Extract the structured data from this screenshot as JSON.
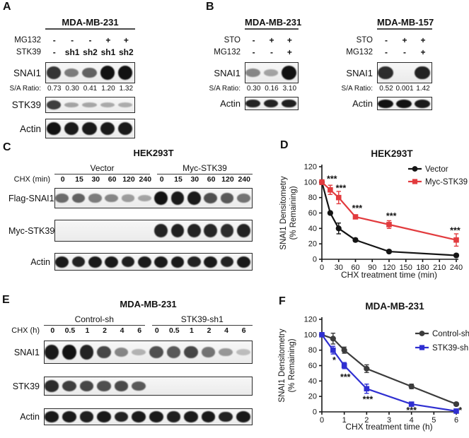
{
  "panels": {
    "A": {
      "letter": "A",
      "western": {
        "cell_line": "MDA-MB-231",
        "treatments": [
          {
            "label": "MG132",
            "values": [
              "-",
              "-",
              "-",
              "+",
              "+"
            ]
          },
          {
            "label": "STK39",
            "values": [
              "-",
              "sh1",
              "sh2",
              "sh1",
              "sh2"
            ]
          }
        ],
        "ratio_label": "S/A Ratio:",
        "ratios": [
          "0.73",
          "0.30",
          "0.41",
          "1.20",
          "1.32"
        ],
        "blots": [
          {
            "label": "SNAI1",
            "bands": [
              0.8,
              0.4,
              0.55,
              1,
              1
            ]
          },
          {
            "label": "STK39",
            "bands": [
              0.75,
              0.18,
              0.16,
              0.14,
              0.13
            ]
          },
          {
            "label": "Actin",
            "bands": [
              1,
              0.95,
              0.95,
              0.95,
              0.95
            ]
          }
        ]
      }
    },
    "B": {
      "letter": "B",
      "left": {
        "cell_line": "MDA-MB-231",
        "treatments": [
          {
            "label": "STO",
            "values": [
              "-",
              "+",
              "+"
            ]
          },
          {
            "label": "MG132",
            "values": [
              "-",
              "-",
              "+"
            ]
          }
        ],
        "ratio_label": "S/A Ratio:",
        "ratios": [
          "0.30",
          "0.16",
          "3.10"
        ],
        "blots": [
          {
            "label": "SNAI1",
            "bands": [
              0.35,
              0.18,
              1
            ]
          },
          {
            "label": "Actin",
            "bands": [
              0.9,
              0.9,
              0.92
            ]
          }
        ]
      },
      "right": {
        "cell_line": "MDA-MB-157",
        "treatments": [
          {
            "label": "STO",
            "values": [
              "-",
              "+",
              "+"
            ]
          },
          {
            "label": "MG132",
            "values": [
              "-",
              "-",
              "+"
            ]
          }
        ],
        "ratio_label": "S/A Ratio:",
        "ratios": [
          "0.52",
          "0.001",
          "1.42"
        ],
        "blots": [
          {
            "label": "SNAI1",
            "bands": [
              0.85,
              0,
              0.9
            ]
          },
          {
            "label": "Actin",
            "bands": [
              1,
              1,
              0.95
            ]
          }
        ]
      }
    },
    "C": {
      "letter": "C",
      "western": {
        "cell_line": "HEK293T",
        "groups": [
          "Vector",
          "Myc-STK39"
        ],
        "lane_label": "CHX (min)",
        "lane_values": [
          "0",
          "15",
          "30",
          "60",
          "120",
          "240",
          "0",
          "15",
          "30",
          "60",
          "120",
          "240"
        ],
        "blots": [
          {
            "label": "Flag-SNAI1",
            "bands": [
              0.5,
              0.55,
              0.4,
              0.35,
              0.22,
              0.18,
              1,
              0.95,
              0.95,
              0.65,
              0.6,
              0.45
            ]
          },
          {
            "label": "Myc-STK39",
            "bands": [
              0,
              0,
              0,
              0,
              0,
              0,
              0.9,
              0.92,
              0.9,
              0.88,
              0.85,
              0.9
            ]
          },
          {
            "label": "Actin",
            "bands": [
              0.95,
              0.9,
              0.95,
              0.95,
              0.92,
              0.95,
              0.95,
              0.95,
              0.9,
              0.95,
              0.9,
              0.95
            ]
          }
        ]
      }
    },
    "D": {
      "letter": "D"
    },
    "E": {
      "letter": "E",
      "western": {
        "cell_line": "MDA-MB-231",
        "groups": [
          "Control-sh",
          "STK39-sh1"
        ],
        "lane_label": "CHX (h)",
        "lane_values": [
          "0",
          "0.5",
          "1",
          "2",
          "4",
          "6",
          "0",
          "0.5",
          "1",
          "2",
          "4",
          "6"
        ],
        "blots": [
          {
            "label": "SNAI1",
            "bands": [
              0.95,
              1,
              0.9,
              0.7,
              0.35,
              0.1,
              0.65,
              0.6,
              0.7,
              0.45,
              0.25,
              0.04
            ]
          },
          {
            "label": "STK39",
            "bands": [
              0.85,
              0.75,
              0.7,
              0.65,
              0.68,
              0.6,
              0,
              0,
              0,
              0,
              0,
              0
            ]
          },
          {
            "label": "Actin",
            "bands": [
              0.95,
              0.95,
              0.92,
              0.95,
              0.9,
              0.95,
              0.95,
              0.92,
              0.95,
              0.95,
              0.9,
              0.95
            ]
          }
        ]
      }
    },
    "F": {
      "letter": "F"
    }
  },
  "chart_data": [
    {
      "panel": "D",
      "type": "line",
      "title": "HEK293T",
      "xlabel": "CHX treatment time (min)",
      "ylabel_line1": "SNAI1 Densitometry",
      "ylabel_line2": "(% Remaining)",
      "xlim": [
        0,
        240
      ],
      "ylim": [
        0,
        120
      ],
      "xticks": [
        0,
        30,
        60,
        90,
        120,
        150,
        180,
        210,
        240
      ],
      "yticks": [
        0,
        20,
        40,
        60,
        80,
        100,
        120
      ],
      "grid": false,
      "legend_position": "top-right",
      "series": [
        {
          "name": "Vector",
          "color": "#141414",
          "marker": "circle",
          "x": [
            0,
            15,
            30,
            60,
            120,
            240
          ],
          "y": [
            100,
            60,
            40,
            25,
            10,
            5
          ],
          "err": [
            3,
            2,
            7,
            2,
            2,
            2
          ]
        },
        {
          "name": "Myc-STK39",
          "color": "#e23b3e",
          "marker": "square",
          "x": [
            0,
            15,
            30,
            60,
            120,
            240
          ],
          "y": [
            100,
            90,
            80,
            55,
            45,
            25
          ],
          "err": [
            3,
            6,
            8,
            2,
            5,
            8
          ]
        }
      ],
      "annotations": [
        {
          "text": "***",
          "x": 18,
          "y": 104
        },
        {
          "text": "***",
          "x": 34,
          "y": 92
        },
        {
          "text": "***",
          "x": 63,
          "y": 66
        },
        {
          "text": "***",
          "x": 124,
          "y": 56
        },
        {
          "text": "***",
          "x": 238,
          "y": 37
        }
      ]
    },
    {
      "panel": "F",
      "type": "line",
      "title": "MDA-MB-231",
      "xlabel": "CHX treatment time (h)",
      "ylabel_line1": "SNAI1 Densitometry",
      "ylabel_line2": "(% Remaining)",
      "xlim": [
        0,
        6
      ],
      "ylim": [
        0,
        120
      ],
      "xticks": [
        0,
        1,
        2,
        3,
        4,
        5,
        6
      ],
      "yticks": [
        0,
        20,
        40,
        60,
        80,
        100,
        120
      ],
      "grid": false,
      "legend_position": "top-right",
      "series": [
        {
          "name": "Control-sh",
          "color": "#3c3c3c",
          "marker": "circle",
          "x": [
            0,
            0.5,
            1,
            2,
            4,
            6
          ],
          "y": [
            100,
            95,
            80,
            56,
            33,
            10
          ],
          "err": [
            2,
            7,
            4,
            5,
            3,
            2
          ]
        },
        {
          "name": "STK39-sh1",
          "color": "#2f2fd1",
          "marker": "square",
          "x": [
            0,
            0.5,
            1,
            2,
            4,
            6
          ],
          "y": [
            100,
            80,
            60,
            30,
            10,
            1
          ],
          "err": [
            2,
            5,
            4,
            6,
            2,
            1
          ]
        }
      ],
      "annotations": [
        {
          "text": "*",
          "x": 0.55,
          "y": 67
        },
        {
          "text": "***",
          "x": 1.05,
          "y": 45
        },
        {
          "text": "***",
          "x": 2.05,
          "y": 16
        },
        {
          "text": "***",
          "x": 4,
          "y": 2
        },
        {
          "text": "*",
          "x": 6.18,
          "y": 2
        }
      ]
    }
  ]
}
